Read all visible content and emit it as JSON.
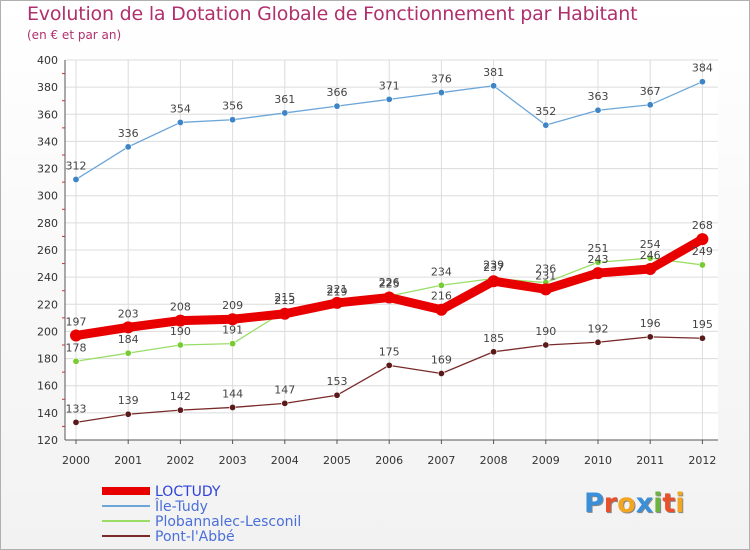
{
  "header": {
    "title": "Evolution de la Dotation Globale de Fonctionnement par Habitant",
    "subtitle": "(en € et par an)"
  },
  "logo": {
    "text": "Proxiti",
    "colors": [
      "#3a8fd8",
      "#e8502c",
      "#f2a623",
      "#3a8fd8",
      "#6cb33f",
      "#e8502c",
      "#f2a623"
    ]
  },
  "chart_data": {
    "type": "line",
    "title": "Evolution de la Dotation Globale de Fonctionnement par Habitant",
    "subtitle": "(en € et par an)",
    "x": [
      "2000",
      "2001",
      "2002",
      "2003",
      "2004",
      "2005",
      "2006",
      "2007",
      "2008",
      "2009",
      "2010",
      "2011",
      "2012"
    ],
    "ylim": [
      120,
      400
    ],
    "yticks": [
      120,
      140,
      160,
      180,
      200,
      220,
      240,
      260,
      280,
      300,
      320,
      340,
      360,
      380,
      400
    ],
    "grid": true,
    "legend_position": "bottom-left",
    "series": [
      {
        "name": "LOCTUDY",
        "color": "#e80000",
        "marker": "#e80000",
        "width": "thick",
        "values": [
          197,
          203,
          208,
          209,
          213,
          221,
          225,
          216,
          237,
          231,
          243,
          246,
          268
        ],
        "labels": [
          "197",
          "203",
          "208",
          "209",
          "213",
          "221",
          "225",
          "216",
          "237",
          "231",
          "243",
          "246",
          "268"
        ]
      },
      {
        "name": "Île-Tudy",
        "color": "#6ca6d8",
        "marker": "#3d85c6",
        "width": "thin",
        "values": [
          312,
          336,
          354,
          356,
          361,
          366,
          371,
          376,
          381,
          352,
          363,
          367,
          384
        ],
        "labels": [
          "312",
          "336",
          "354",
          "356",
          "361",
          "366",
          "371",
          "376",
          "381",
          "352",
          "363",
          "367",
          "384"
        ]
      },
      {
        "name": "Plobannalec-Lesconil",
        "color": "#99dd66",
        "marker": "#77cc33",
        "width": "thin",
        "values": [
          178,
          184,
          190,
          191,
          215,
          219,
          226,
          234,
          239,
          236,
          251,
          254,
          249
        ],
        "labels": [
          "178",
          "184",
          "190",
          "191",
          "215",
          "219",
          "226",
          "234",
          "239",
          "236",
          "251",
          "254",
          "249"
        ]
      },
      {
        "name": "Pont-l'Abbé",
        "color": "#7a2a2a",
        "marker": "#5a1a1a",
        "width": "thin",
        "values": [
          133,
          139,
          142,
          144,
          147,
          153,
          175,
          169,
          185,
          190,
          192,
          196,
          195
        ],
        "labels": [
          "133",
          "139",
          "142",
          "144",
          "147",
          "153",
          "175",
          "169",
          "185",
          "190",
          "192",
          "196",
          "195"
        ]
      }
    ]
  }
}
